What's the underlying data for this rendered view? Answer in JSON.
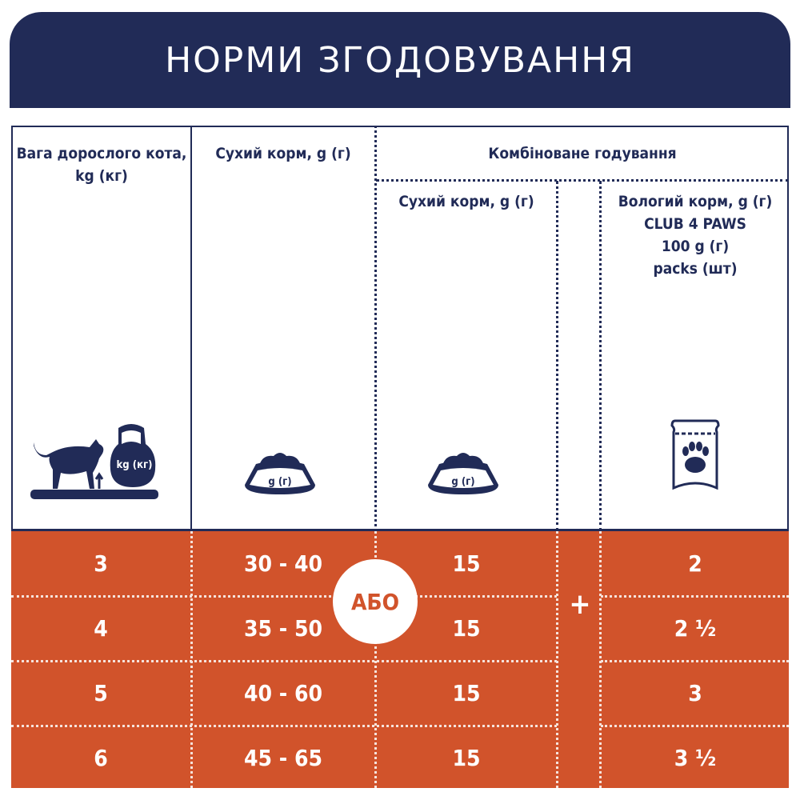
{
  "title": "НОРМИ ЗГОДОВУВАННЯ",
  "headers": {
    "weight": "Вага дорослого кота, kg (кг)",
    "dry": "Сухий корм, g (г)",
    "combined": "Комбіноване годування",
    "combined_dry": "Сухий корм, g (г)",
    "wet_lines": [
      "Вологий корм, g (г)",
      "CLUB 4 PAWS",
      "100 g (г)",
      "packs (шт)"
    ]
  },
  "icons": {
    "weight": {
      "name": "cat-scale-kettlebell-icon",
      "label": "kg (кг)"
    },
    "dry": {
      "name": "food-bowl-icon",
      "label": "g (г)"
    },
    "combined_dry": {
      "name": "food-bowl-icon",
      "label": "g (г)"
    },
    "wet": {
      "name": "paw-pouch-icon"
    }
  },
  "or_label": "АБО",
  "plus_label": "+",
  "rows": [
    {
      "weight": "3",
      "dry": "30 - 40",
      "combined_dry": "15",
      "wet": "2"
    },
    {
      "weight": "4",
      "dry": "35 - 50",
      "combined_dry": "15",
      "wet": "2 ½"
    },
    {
      "weight": "5",
      "dry": "40 - 60",
      "combined_dry": "15",
      "wet": "3"
    },
    {
      "weight": "6",
      "dry": "45 - 65",
      "combined_dry": "15",
      "wet": "3 ½"
    }
  ],
  "colors": {
    "navy": "#212b57",
    "orange": "#d1532b"
  }
}
